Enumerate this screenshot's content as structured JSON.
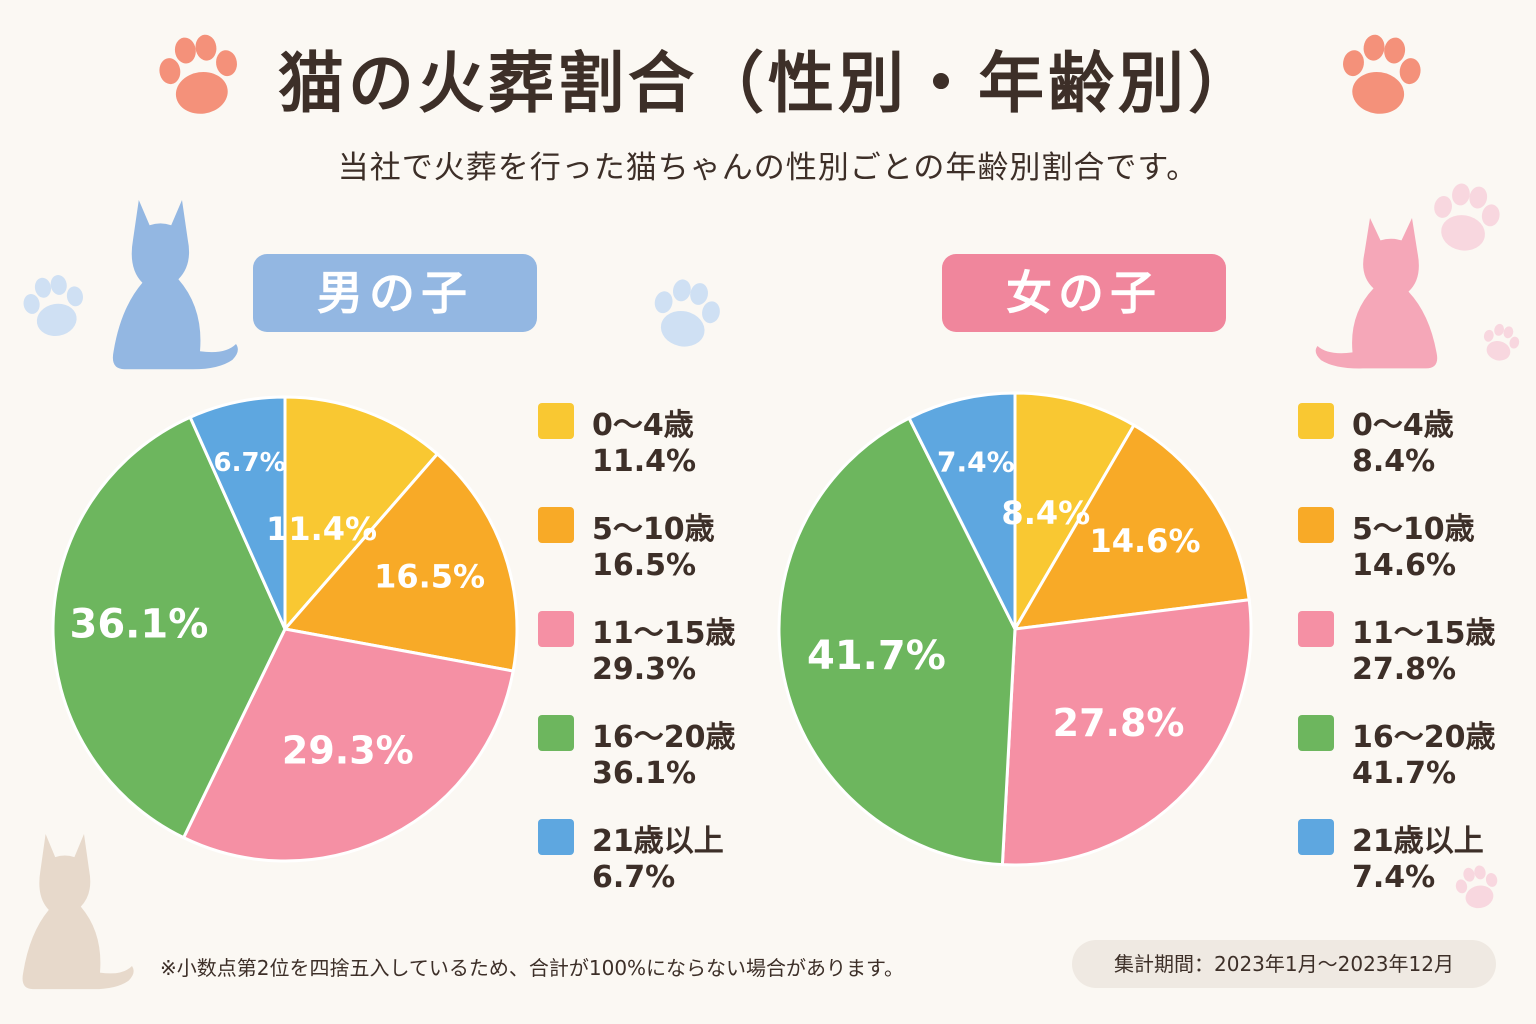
{
  "title": "猫の火葬割合（性別・年齢別）",
  "subtitle": "当社で火葬を行った猫ちゃんの性別ごとの年齢別割合です。",
  "colors": {
    "age_0_4": "#f9c832",
    "age_5_10": "#f8aa27",
    "age_11_15": "#f590a4",
    "age_16_20": "#6db65e",
    "age_21_plus": "#5ea7e0",
    "boy_accent": "#93b7e2",
    "girl_accent": "#f0869c"
  },
  "chart_data": [
    {
      "type": "pie",
      "group_label": "男の子",
      "categories": [
        "0～4歳",
        "5～10歳",
        "11～15歳",
        "16～20歳",
        "21歳以上"
      ],
      "values": [
        11.4,
        16.5,
        29.3,
        36.1,
        6.7
      ],
      "value_labels": [
        "11.4%",
        "16.5%",
        "29.3%",
        "36.1%",
        "6.7%"
      ],
      "legend_placement": "right"
    },
    {
      "type": "pie",
      "group_label": "女の子",
      "categories": [
        "0～4歳",
        "5～10歳",
        "11～15歳",
        "16～20歳",
        "21歳以上"
      ],
      "values": [
        8.4,
        14.6,
        27.8,
        41.7,
        7.4
      ],
      "value_labels": [
        "8.4%",
        "14.6%",
        "27.8%",
        "41.7%",
        "7.4%"
      ],
      "legend_placement": "right"
    }
  ],
  "legend": {
    "boy": [
      {
        "label": "0～4歳",
        "value": "11.4%"
      },
      {
        "label": "5～10歳",
        "value": "16.5%"
      },
      {
        "label": "11～15歳",
        "value": "29.3%"
      },
      {
        "label": "16～20歳",
        "value": "36.1%"
      },
      {
        "label": "21歳以上",
        "value": "6.7%"
      }
    ],
    "girl": [
      {
        "label": "0～4歳",
        "value": "8.4%"
      },
      {
        "label": "5～10歳",
        "value": "14.6%"
      },
      {
        "label": "11～15歳",
        "value": "27.8%"
      },
      {
        "label": "16～20歳",
        "value": "41.7%"
      },
      {
        "label": "21歳以上",
        "value": "7.4%"
      }
    ]
  },
  "decor": {
    "icons": [
      "paw-icon",
      "cat-silhouette-icon"
    ]
  },
  "footnote": "※小数点第2位を四捨五入しているため、合計が100%にならない場合があります。",
  "period": "集計期間：2023年1月～2023年12月"
}
